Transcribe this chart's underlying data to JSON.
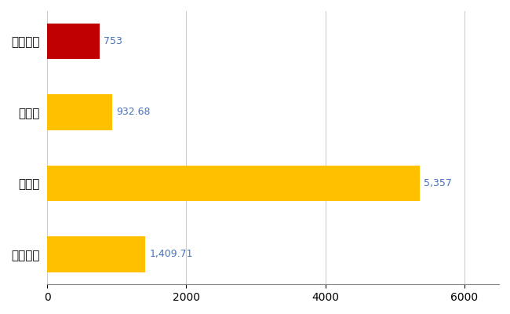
{
  "categories": [
    "全国平均",
    "県最大",
    "県平均",
    "北秋田市"
  ],
  "values": [
    1409.71,
    5357,
    932.68,
    753
  ],
  "colors": [
    "#FFC000",
    "#FFC000",
    "#FFC000",
    "#C00000"
  ],
  "labels": [
    "1,409.71",
    "5,357",
    "932.68",
    "753"
  ],
  "xlim": [
    0,
    6500
  ],
  "xticks": [
    0,
    2000,
    4000,
    6000
  ],
  "background_color": "#FFFFFF",
  "grid_color": "#CCCCCC",
  "label_color": "#4472C4",
  "tick_label_color": "#000000",
  "bar_label_fontsize": 9,
  "axis_label_fontsize": 11
}
